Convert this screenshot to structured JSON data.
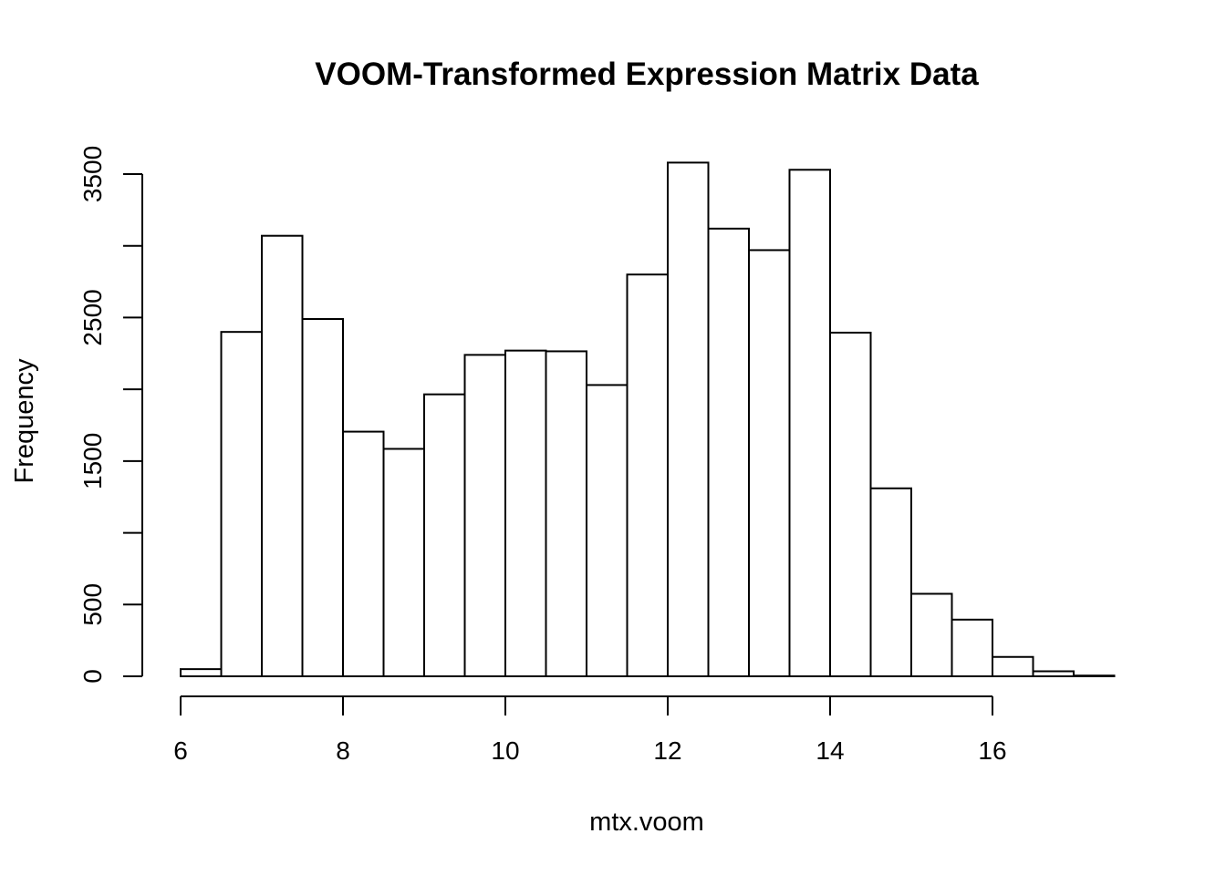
{
  "chart_data": {
    "type": "bar",
    "title": "VOOM-Transformed Expression Matrix Data",
    "xlabel": "mtx.voom",
    "ylabel": "Frequency",
    "bin_edges": [
      6,
      6.5,
      7,
      7.5,
      8,
      8.5,
      9,
      9.5,
      10,
      10.5,
      11,
      11.5,
      12,
      12.5,
      13,
      13.5,
      14,
      14.5,
      15,
      15.5,
      16,
      16.5,
      17,
      17.5
    ],
    "values": [
      50,
      2400,
      3070,
      2490,
      1705,
      1585,
      1965,
      2240,
      2270,
      2265,
      2030,
      2800,
      3580,
      3120,
      2970,
      3530,
      2395,
      1310,
      575,
      395,
      135,
      35,
      5
    ],
    "xlim": [
      6,
      17.5
    ],
    "ylim": [
      0,
      3500
    ],
    "x_ticks": [
      6,
      8,
      10,
      12,
      14,
      16
    ],
    "y_ticks": [
      0,
      500,
      1000,
      1500,
      2000,
      2500,
      3000,
      3500
    ],
    "y_tick_labels": [
      "0",
      "500",
      "",
      "1500",
      "",
      "2500",
      "",
      "3500"
    ],
    "grid": false,
    "legend": "none",
    "bar_fill": "#ffffff",
    "bar_stroke": "#000000"
  }
}
